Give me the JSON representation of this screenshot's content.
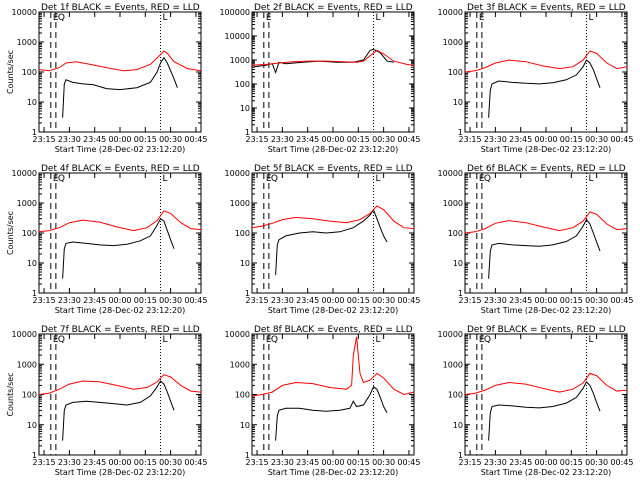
{
  "figure": {
    "colors": {
      "events": "#000000",
      "lld": "#ff0000",
      "frame": "#000000"
    }
  },
  "chart_data": [
    {
      "type": "line",
      "panel": 1,
      "title": "Det 1f BLACK = Events, RED = LLD",
      "xlabel": "Start Time (28-Dec-02 23:12:20)",
      "ylabel": "Counts/sec",
      "yscale": "log",
      "ylim": [
        1,
        10000
      ],
      "yticks": [
        "1",
        "10",
        "100",
        "1000",
        "10000"
      ],
      "xticks": [
        "23:15",
        "23:30",
        "23:45",
        "00:00",
        "00:15",
        "00:30",
        "00:45"
      ],
      "xlim_min": [
        0,
        96
      ],
      "markers_text": [
        "E",
        "Q",
        "L"
      ],
      "series": [
        {
          "name": "BLACK = Events",
          "x": [
            14,
            15,
            16,
            20,
            26,
            32,
            40,
            48,
            58,
            66,
            70,
            72,
            74,
            76,
            80,
            82
          ],
          "values": [
            3,
            40,
            55,
            45,
            40,
            38,
            28,
            26,
            30,
            45,
            100,
            200,
            300,
            200,
            60,
            30
          ]
        },
        {
          "name": "RED = LLD",
          "x": [
            0,
            6,
            12,
            16,
            22,
            30,
            40,
            50,
            58,
            66,
            72,
            74,
            76,
            80,
            88,
            96
          ],
          "values": [
            120,
            110,
            140,
            200,
            220,
            180,
            140,
            110,
            120,
            180,
            380,
            500,
            420,
            220,
            130,
            110
          ]
        }
      ],
      "marker_x": [
        7,
        10,
        72
      ]
    },
    {
      "type": "line",
      "panel": 2,
      "title": "Det 2f BLACK = Events, RED = LLD",
      "xlabel": "Start Time (28-Dec-02 23:12:20)",
      "ylabel": "",
      "yscale": "log",
      "ylim": [
        1,
        100000
      ],
      "yticks": [
        "1",
        "10",
        "100",
        "1000",
        "10000",
        "100000"
      ],
      "xticks": [
        "23:15",
        "23:30",
        "23:45",
        "00:00",
        "00:15",
        "00:30",
        "00:45"
      ],
      "xlim_min": [
        0,
        96
      ],
      "markers_text": [
        "E",
        "",
        "L"
      ],
      "series": [
        {
          "name": "BLACK = Events",
          "x": [
            0,
            8,
            12,
            14,
            16,
            20,
            30,
            40,
            50,
            60,
            66,
            70,
            72,
            76,
            80,
            84
          ],
          "values": [
            500,
            600,
            700,
            300,
            800,
            700,
            800,
            900,
            800,
            800,
            1000,
            2500,
            2800,
            2000,
            900,
            800
          ]
        },
        {
          "name": "RED = LLD",
          "x": [
            0,
            8,
            16,
            24,
            34,
            44,
            54,
            62,
            66,
            70,
            74,
            78,
            84,
            92,
            96
          ],
          "values": [
            600,
            650,
            750,
            850,
            900,
            900,
            850,
            800,
            900,
            1500,
            2500,
            1800,
            900,
            650,
            600
          ]
        }
      ],
      "marker_x": [
        7,
        10,
        72
      ]
    },
    {
      "type": "line",
      "panel": 3,
      "title": "Det 3f BLACK = Events, RED = LLD",
      "xlabel": "Start Time (28-Dec-02 23:12:20)",
      "ylabel": "",
      "yscale": "log",
      "ylim": [
        1,
        10000
      ],
      "yticks": [
        "1",
        "10",
        "100",
        "1000",
        "10000"
      ],
      "xticks": [
        "23:15",
        "23:30",
        "23:45",
        "00:00",
        "00:15",
        "00:30",
        "00:45"
      ],
      "xlim_min": [
        0,
        96
      ],
      "markers_text": [
        "E",
        "",
        "L"
      ],
      "series": [
        {
          "name": "BLACK = Events",
          "x": [
            14,
            15,
            16,
            20,
            28,
            36,
            44,
            52,
            60,
            66,
            70,
            72,
            74,
            76,
            78,
            80
          ],
          "values": [
            3,
            25,
            40,
            50,
            45,
            42,
            40,
            44,
            55,
            80,
            150,
            250,
            200,
            120,
            60,
            30
          ]
        },
        {
          "name": "RED = LLD",
          "x": [
            0,
            6,
            12,
            18,
            26,
            36,
            46,
            56,
            64,
            70,
            74,
            78,
            84,
            90,
            96
          ],
          "values": [
            100,
            110,
            140,
            200,
            250,
            220,
            160,
            130,
            150,
            250,
            500,
            420,
            200,
            130,
            150
          ]
        }
      ],
      "marker_x": [
        7,
        10,
        72
      ]
    },
    {
      "type": "line",
      "panel": 4,
      "title": "Det 4f BLACK = Events, RED = LLD",
      "xlabel": "Start Time (28-Dec-02 23:12:20)",
      "ylabel": "Counts/sec",
      "yscale": "log",
      "ylim": [
        1,
        10000
      ],
      "yticks": [
        "1",
        "10",
        "100",
        "1000",
        "10000"
      ],
      "xticks": [
        "23:15",
        "23:30",
        "23:45",
        "00:00",
        "00:15",
        "00:30",
        "00:45"
      ],
      "xlim_min": [
        0,
        96
      ],
      "markers_text": [
        "E",
        "Q",
        "L"
      ],
      "series": [
        {
          "name": "BLACK = Events",
          "x": [
            14,
            15,
            16,
            20,
            28,
            36,
            44,
            52,
            60,
            66,
            70,
            72,
            74,
            76,
            78,
            80
          ],
          "values": [
            3,
            30,
            45,
            50,
            45,
            40,
            38,
            42,
            55,
            80,
            180,
            300,
            250,
            120,
            60,
            30
          ]
        },
        {
          "name": "RED = LLD",
          "x": [
            0,
            6,
            12,
            18,
            26,
            36,
            46,
            56,
            64,
            70,
            74,
            78,
            84,
            90,
            96
          ],
          "values": [
            110,
            120,
            150,
            220,
            270,
            230,
            160,
            120,
            150,
            260,
            550,
            450,
            220,
            140,
            130
          ]
        }
      ],
      "marker_x": [
        7,
        10,
        72
      ]
    },
    {
      "type": "line",
      "panel": 5,
      "title": "Det 5f BLACK = Events, RED = LLD",
      "xlabel": "Start Time (28-Dec-02 23:12:20)",
      "ylabel": "",
      "yscale": "log",
      "ylim": [
        1,
        10000
      ],
      "yticks": [
        "1",
        "10",
        "100",
        "1000",
        "10000"
      ],
      "xticks": [
        "23:15",
        "23:30",
        "23:45",
        "00:00",
        "00:15",
        "00:30",
        "00:45"
      ],
      "xlim_min": [
        0,
        96
      ],
      "markers_text": [
        "E",
        "Q",
        "L"
      ],
      "series": [
        {
          "name": "BLACK = Events",
          "x": [
            14,
            15,
            16,
            20,
            28,
            36,
            44,
            52,
            60,
            66,
            70,
            72,
            74,
            76,
            78,
            80
          ],
          "values": [
            4,
            40,
            60,
            80,
            100,
            110,
            100,
            110,
            150,
            250,
            400,
            600,
            300,
            150,
            80,
            50
          ]
        },
        {
          "name": "RED = LLD",
          "x": [
            0,
            6,
            12,
            18,
            26,
            36,
            46,
            56,
            64,
            70,
            74,
            78,
            84,
            90,
            96
          ],
          "values": [
            150,
            170,
            210,
            280,
            330,
            300,
            250,
            220,
            280,
            450,
            800,
            600,
            250,
            150,
            140
          ]
        }
      ],
      "marker_x": [
        7,
        10,
        72
      ]
    },
    {
      "type": "line",
      "panel": 6,
      "title": "Det 6f BLACK = Events, RED = LLD",
      "xlabel": "Start Time (28-Dec-02 23:12:20)",
      "ylabel": "",
      "yscale": "log",
      "ylim": [
        1,
        10000
      ],
      "yticks": [
        "1",
        "10",
        "100",
        "1000",
        "10000"
      ],
      "xticks": [
        "23:15",
        "23:30",
        "23:45",
        "00:00",
        "00:15",
        "00:30",
        "00:45"
      ],
      "xlim_min": [
        0,
        96
      ],
      "markers_text": [
        "E",
        "Q",
        "L"
      ],
      "series": [
        {
          "name": "BLACK = Events",
          "x": [
            14,
            15,
            16,
            20,
            28,
            36,
            44,
            52,
            60,
            66,
            70,
            72,
            74,
            76,
            78,
            80
          ],
          "values": [
            3,
            25,
            40,
            45,
            40,
            38,
            36,
            40,
            52,
            80,
            170,
            280,
            200,
            100,
            50,
            25
          ]
        },
        {
          "name": "RED = LLD",
          "x": [
            0,
            6,
            12,
            18,
            26,
            36,
            46,
            56,
            64,
            70,
            74,
            78,
            84,
            90,
            96
          ],
          "values": [
            100,
            110,
            140,
            210,
            260,
            220,
            160,
            120,
            150,
            250,
            500,
            420,
            200,
            130,
            140
          ]
        }
      ],
      "marker_x": [
        7,
        10,
        72
      ]
    },
    {
      "type": "line",
      "panel": 7,
      "title": "Det 7f BLACK = Events, RED = LLD",
      "xlabel": "Start Time (28-Dec-02 23:12:20)",
      "ylabel": "Counts/sec",
      "yscale": "log",
      "ylim": [
        1,
        10000
      ],
      "yticks": [
        "1",
        "10",
        "100",
        "1000",
        "10000"
      ],
      "xticks": [
        "23:15",
        "23:30",
        "23:45",
        "00:00",
        "00:15",
        "00:30",
        "00:45"
      ],
      "xlim_min": [
        0,
        96
      ],
      "markers_text": [
        "E",
        "Q",
        "L"
      ],
      "series": [
        {
          "name": "BLACK = Events",
          "x": [
            14,
            15,
            16,
            20,
            28,
            36,
            44,
            52,
            60,
            66,
            70,
            72,
            74,
            76,
            78,
            80
          ],
          "values": [
            3,
            30,
            45,
            55,
            60,
            55,
            50,
            45,
            55,
            90,
            180,
            280,
            220,
            120,
            60,
            30
          ]
        },
        {
          "name": "RED = LLD",
          "x": [
            0,
            6,
            12,
            18,
            26,
            36,
            46,
            56,
            64,
            70,
            74,
            78,
            84,
            90,
            96
          ],
          "values": [
            100,
            110,
            150,
            220,
            280,
            260,
            200,
            150,
            170,
            260,
            450,
            380,
            200,
            130,
            120
          ]
        }
      ],
      "marker_x": [
        7,
        10,
        72
      ]
    },
    {
      "type": "line",
      "panel": 8,
      "title": "Det 8f BLACK = Events, RED = LLD",
      "xlabel": "Start Time (28-Dec-02 23:12:20)",
      "ylabel": "",
      "yscale": "log",
      "ylim": [
        1,
        10000
      ],
      "yticks": [
        "1",
        "10",
        "100",
        "1000",
        "10000"
      ],
      "xticks": [
        "23:15",
        "23:30",
        "23:45",
        "00:00",
        "00:15",
        "00:30",
        "00:45"
      ],
      "xlim_min": [
        0,
        96
      ],
      "markers_text": [
        "E",
        "Q",
        "L"
      ],
      "series": [
        {
          "name": "BLACK = Events",
          "x": [
            14,
            15,
            16,
            20,
            28,
            36,
            44,
            52,
            58,
            60,
            62,
            66,
            70,
            72,
            74,
            76,
            78,
            80
          ],
          "values": [
            3,
            20,
            30,
            35,
            35,
            30,
            28,
            30,
            35,
            60,
            40,
            45,
            100,
            180,
            150,
            80,
            40,
            25
          ]
        },
        {
          "name": "RED = LLD",
          "x": [
            0,
            6,
            12,
            18,
            26,
            36,
            46,
            56,
            59,
            60,
            62,
            64,
            66,
            70,
            74,
            78,
            84,
            90,
            96
          ],
          "values": [
            90,
            100,
            120,
            200,
            250,
            230,
            170,
            150,
            200,
            2000,
            8000,
            500,
            250,
            300,
            500,
            350,
            150,
            100,
            120
          ]
        }
      ],
      "marker_x": [
        7,
        10,
        72
      ]
    },
    {
      "type": "line",
      "panel": 9,
      "title": "Det 9f BLACK = Events, RED = LLD",
      "xlabel": "Start Time (28-Dec-02 23:12:20)",
      "ylabel": "",
      "yscale": "log",
      "ylim": [
        1,
        10000
      ],
      "yticks": [
        "1",
        "10",
        "100",
        "1000",
        "10000"
      ],
      "xticks": [
        "23:15",
        "23:30",
        "23:45",
        "00:00",
        "00:15",
        "00:30",
        "00:45"
      ],
      "xlim_min": [
        0,
        96
      ],
      "markers_text": [
        "E",
        "Q",
        "L"
      ],
      "series": [
        {
          "name": "BLACK = Events",
          "x": [
            14,
            15,
            16,
            20,
            28,
            36,
            44,
            52,
            60,
            66,
            70,
            72,
            74,
            76,
            78,
            80
          ],
          "values": [
            3,
            25,
            40,
            45,
            42,
            38,
            36,
            40,
            52,
            80,
            160,
            260,
            200,
            110,
            55,
            28
          ]
        },
        {
          "name": "RED = LLD",
          "x": [
            0,
            6,
            12,
            18,
            26,
            36,
            46,
            56,
            64,
            70,
            74,
            78,
            84,
            90,
            96
          ],
          "values": [
            100,
            110,
            140,
            200,
            250,
            220,
            160,
            120,
            150,
            240,
            500,
            420,
            200,
            130,
            140
          ]
        }
      ],
      "marker_x": [
        7,
        10,
        72
      ]
    }
  ]
}
